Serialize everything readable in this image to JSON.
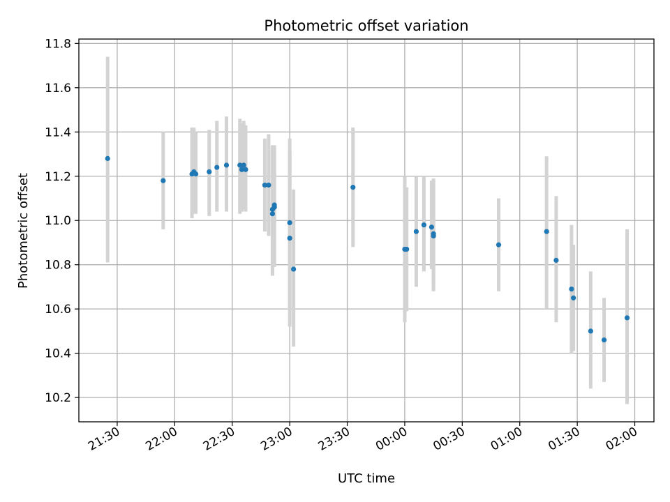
{
  "chart_data": {
    "type": "scatter",
    "title": "Photometric offset variation",
    "xlabel": "UTC time",
    "ylabel": "Photometric offset",
    "grid": true,
    "x_unit": "UTC time (HH:MM)",
    "xlim": [
      "21:10",
      "02:10"
    ],
    "ylim": [
      10.09,
      11.82
    ],
    "x_ticks": [
      "21:30",
      "22:00",
      "22:30",
      "23:00",
      "23:30",
      "00:00",
      "00:30",
      "01:00",
      "01:30",
      "02:00"
    ],
    "y_ticks": [
      10.2,
      10.4,
      10.6,
      10.8,
      11.0,
      11.2,
      11.4,
      11.6,
      11.8
    ],
    "y_tick_labels": [
      "10.2",
      "10.4",
      "10.6",
      "10.8",
      "11.0",
      "11.2",
      "11.4",
      "11.6",
      "11.8"
    ],
    "colors": {
      "points": "#1f77b4",
      "error_bars": "#d3d3d3",
      "grid": "#b0b0b0"
    },
    "series": [
      {
        "points": [
          {
            "x": "21:25",
            "y": 11.28,
            "ylow": 10.81,
            "yhigh": 11.74
          },
          {
            "x": "21:54",
            "y": 11.18,
            "ylow": 10.96,
            "yhigh": 11.4
          },
          {
            "x": "22:09",
            "y": 11.21,
            "ylow": 11.01,
            "yhigh": 11.42
          },
          {
            "x": "22:10",
            "y": 11.22,
            "ylow": 11.03,
            "yhigh": 11.42
          },
          {
            "x": "22:11",
            "y": 11.21,
            "ylow": 11.03,
            "yhigh": 11.4
          },
          {
            "x": "22:18",
            "y": 11.22,
            "ylow": 11.02,
            "yhigh": 11.41
          },
          {
            "x": "22:22",
            "y": 11.24,
            "ylow": 11.04,
            "yhigh": 11.45
          },
          {
            "x": "22:27",
            "y": 11.25,
            "ylow": 11.04,
            "yhigh": 11.47
          },
          {
            "x": "22:34",
            "y": 11.25,
            "ylow": 11.03,
            "yhigh": 11.46
          },
          {
            "x": "22:35",
            "y": 11.23,
            "ylow": 11.04,
            "yhigh": 11.44
          },
          {
            "x": "22:36",
            "y": 11.25,
            "ylow": 11.05,
            "yhigh": 11.45
          },
          {
            "x": "22:37",
            "y": 11.23,
            "ylow": 11.04,
            "yhigh": 11.43
          },
          {
            "x": "22:47",
            "y": 11.16,
            "ylow": 10.95,
            "yhigh": 11.37
          },
          {
            "x": "22:49",
            "y": 11.16,
            "ylow": 10.93,
            "yhigh": 11.39
          },
          {
            "x": "22:51",
            "y": 11.05,
            "ylow": 10.76,
            "yhigh": 11.34
          },
          {
            "x": "22:51",
            "y": 11.03,
            "ylow": 10.75,
            "yhigh": 11.33
          },
          {
            "x": "22:52",
            "y": 11.06,
            "ylow": 10.79,
            "yhigh": 11.34
          },
          {
            "x": "22:52",
            "y": 11.07,
            "ylow": 10.8,
            "yhigh": 11.33
          },
          {
            "x": "23:00",
            "y": 10.99,
            "ylow": 10.6,
            "yhigh": 11.37
          },
          {
            "x": "23:00",
            "y": 10.92,
            "ylow": 10.52,
            "yhigh": 11.31
          },
          {
            "x": "23:02",
            "y": 10.78,
            "ylow": 10.43,
            "yhigh": 11.14
          },
          {
            "x": "23:33",
            "y": 11.15,
            "ylow": 10.88,
            "yhigh": 11.42
          },
          {
            "x": "00:00",
            "y": 10.87,
            "ylow": 10.54,
            "yhigh": 11.2
          },
          {
            "x": "00:01",
            "y": 10.87,
            "ylow": 10.59,
            "yhigh": 11.15
          },
          {
            "x": "00:06",
            "y": 10.95,
            "ylow": 10.7,
            "yhigh": 11.2
          },
          {
            "x": "00:10",
            "y": 10.98,
            "ylow": 10.77,
            "yhigh": 11.2
          },
          {
            "x": "00:14",
            "y": 10.97,
            "ylow": 10.78,
            "yhigh": 11.18
          },
          {
            "x": "00:15",
            "y": 10.94,
            "ylow": 10.69,
            "yhigh": 11.19
          },
          {
            "x": "00:15",
            "y": 10.93,
            "ylow": 10.68,
            "yhigh": 11.18
          },
          {
            "x": "00:49",
            "y": 10.89,
            "ylow": 10.68,
            "yhigh": 11.1
          },
          {
            "x": "01:14",
            "y": 10.95,
            "ylow": 10.6,
            "yhigh": 11.29
          },
          {
            "x": "01:19",
            "y": 10.82,
            "ylow": 10.54,
            "yhigh": 11.11
          },
          {
            "x": "01:27",
            "y": 10.69,
            "ylow": 10.4,
            "yhigh": 10.98
          },
          {
            "x": "01:28",
            "y": 10.65,
            "ylow": 10.41,
            "yhigh": 10.89
          },
          {
            "x": "01:37",
            "y": 10.5,
            "ylow": 10.24,
            "yhigh": 10.77
          },
          {
            "x": "01:44",
            "y": 10.46,
            "ylow": 10.27,
            "yhigh": 10.65
          },
          {
            "x": "01:56",
            "y": 10.56,
            "ylow": 10.17,
            "yhigh": 10.96
          }
        ]
      }
    ]
  }
}
